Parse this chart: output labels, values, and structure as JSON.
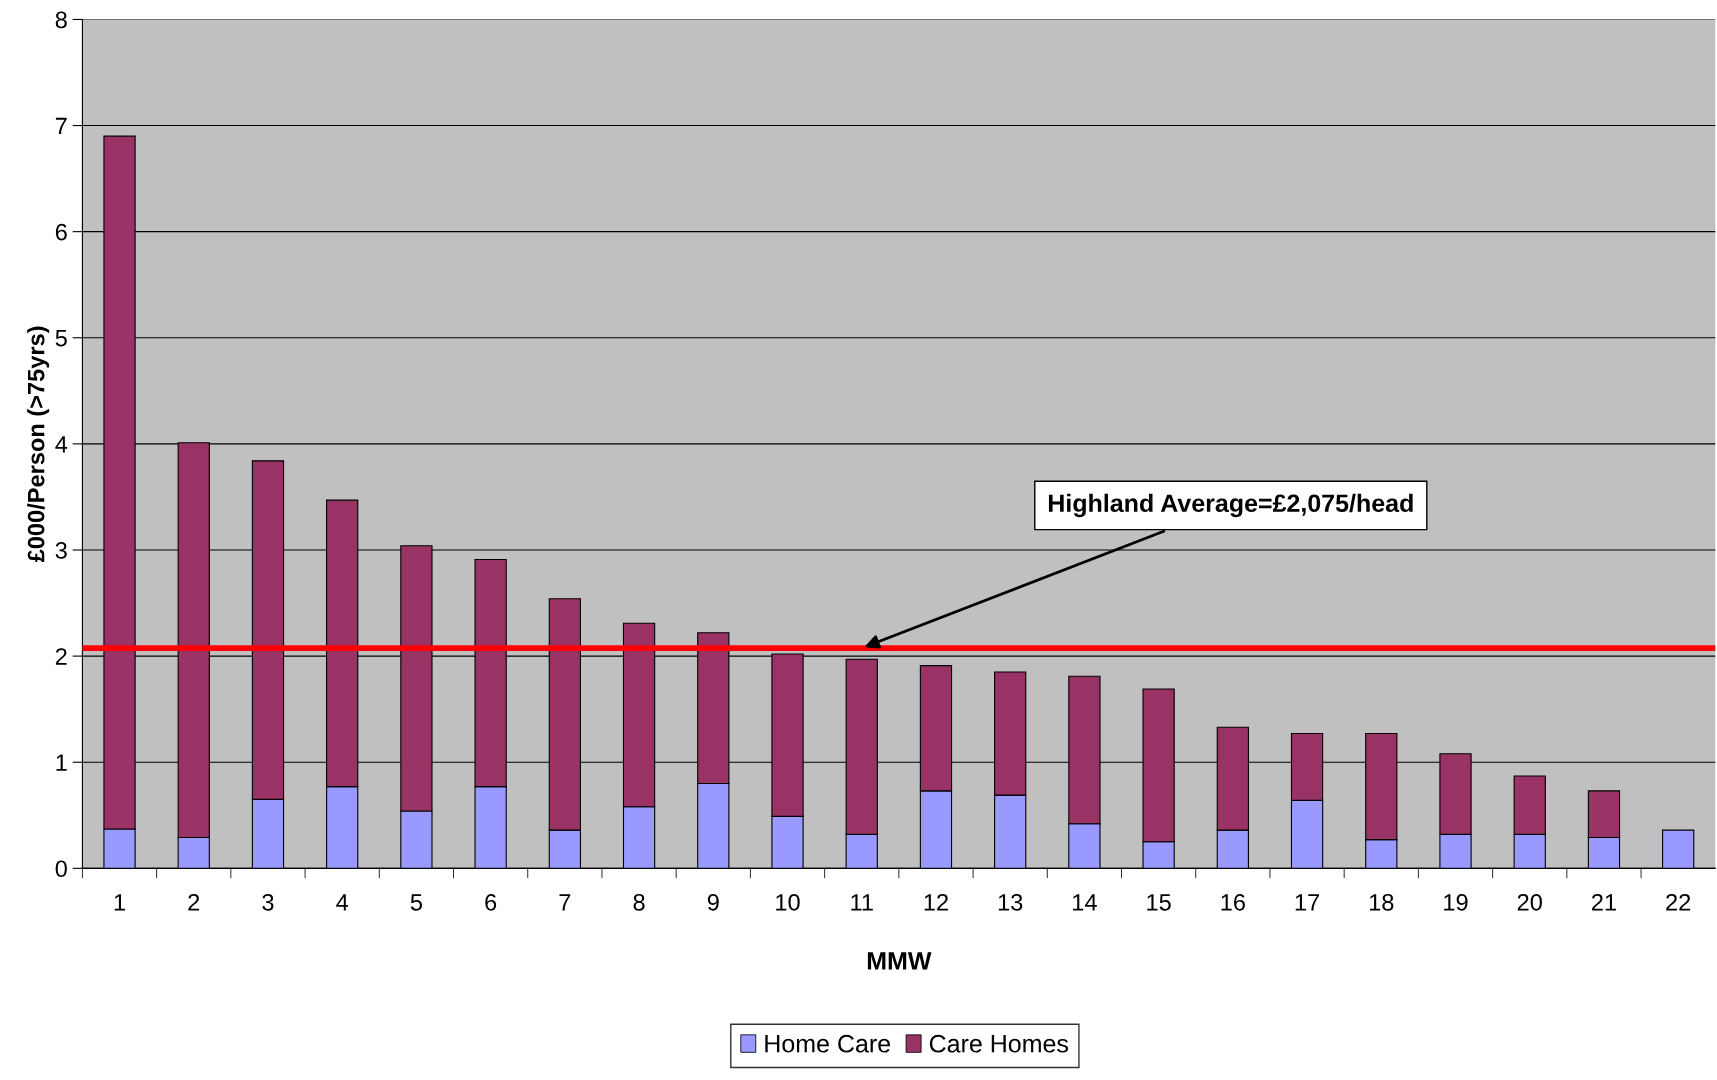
{
  "chart_data": {
    "type": "bar",
    "stacked": true,
    "xlabel": "MMW",
    "ylabel": "£000/Person (>75yrs)",
    "categories": [
      "1",
      "2",
      "3",
      "4",
      "5",
      "6",
      "7",
      "8",
      "9",
      "10",
      "11",
      "12",
      "13",
      "14",
      "15",
      "16",
      "17",
      "18",
      "19",
      "20",
      "21",
      "22"
    ],
    "series": [
      {
        "name": "Home Care",
        "color": "#9999ff",
        "values": [
          0.37,
          0.29,
          0.65,
          0.77,
          0.54,
          0.77,
          0.36,
          0.58,
          0.8,
          0.49,
          0.32,
          0.73,
          0.69,
          0.42,
          0.25,
          0.36,
          0.64,
          0.27,
          0.32,
          0.32,
          0.29,
          0.36
        ]
      },
      {
        "name": "Care Homes",
        "color": "#993366",
        "values": [
          6.53,
          3.72,
          3.19,
          2.7,
          2.5,
          2.14,
          2.18,
          1.73,
          1.42,
          1.53,
          1.65,
          1.18,
          1.16,
          1.39,
          1.44,
          0.97,
          0.63,
          1.0,
          0.76,
          0.55,
          0.44,
          null
        ]
      }
    ],
    "ylim": [
      0,
      8
    ],
    "yticks": [
      0,
      1,
      2,
      3,
      4,
      5,
      6,
      7,
      8
    ],
    "grid": "y",
    "legend": "bottom",
    "ref_lines": [
      {
        "axis": "y",
        "value": 2.075,
        "color": "#ff0000",
        "label": "Highland Average=£2,075/head"
      }
    ]
  }
}
